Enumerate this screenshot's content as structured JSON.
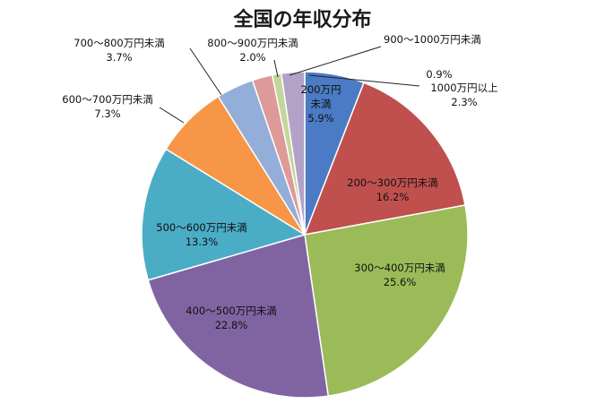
{
  "chart_data": {
    "type": "pie",
    "title": "全国の年収分布",
    "slices": [
      {
        "label": "200万円未満",
        "label_lines": [
          "200万円",
          "未満"
        ],
        "value": 5.9,
        "pct_text": "5.9%",
        "color": "#4a7bc4"
      },
      {
        "label": "200〜300万円未満",
        "label_lines": [
          "200〜300万円未満"
        ],
        "value": 16.2,
        "pct_text": "16.2%",
        "color": "#c0504d"
      },
      {
        "label": "300〜400万円未満",
        "label_lines": [
          "300〜400万円未満"
        ],
        "value": 25.6,
        "pct_text": "25.6%",
        "color": "#9bbb59"
      },
      {
        "label": "400〜500万円未満",
        "label_lines": [
          "400〜500万円未満"
        ],
        "value": 22.8,
        "pct_text": "22.8%",
        "color": "#8064a2"
      },
      {
        "label": "500〜600万円未満",
        "label_lines": [
          "500〜600万円未満"
        ],
        "value": 13.3,
        "pct_text": "13.3%",
        "color": "#4bacc6"
      },
      {
        "label": "600〜700万円未満",
        "label_lines": [
          "600〜700万円未満"
        ],
        "value": 7.3,
        "pct_text": "7.3%",
        "color": "#f79646"
      },
      {
        "label": "700〜800万円未満",
        "label_lines": [
          "700〜800万円未満"
        ],
        "value": 3.7,
        "pct_text": "3.7%",
        "color": "#93aed8"
      },
      {
        "label": "800〜900万円未満",
        "label_lines": [
          "800〜900万円未満"
        ],
        "value": 2.0,
        "pct_text": "2.0%",
        "color": "#dd9a98"
      },
      {
        "label": "900〜1000万円未満",
        "label_lines": [
          "900〜1000万円未満"
        ],
        "value": 0.9,
        "pct_text": "0.9%",
        "color": "#c3d69b"
      },
      {
        "label": "1000万円以上",
        "label_lines": [
          "1000万円以上"
        ],
        "value": 2.3,
        "pct_text": "2.3%",
        "color": "#b3a2c7"
      }
    ]
  }
}
